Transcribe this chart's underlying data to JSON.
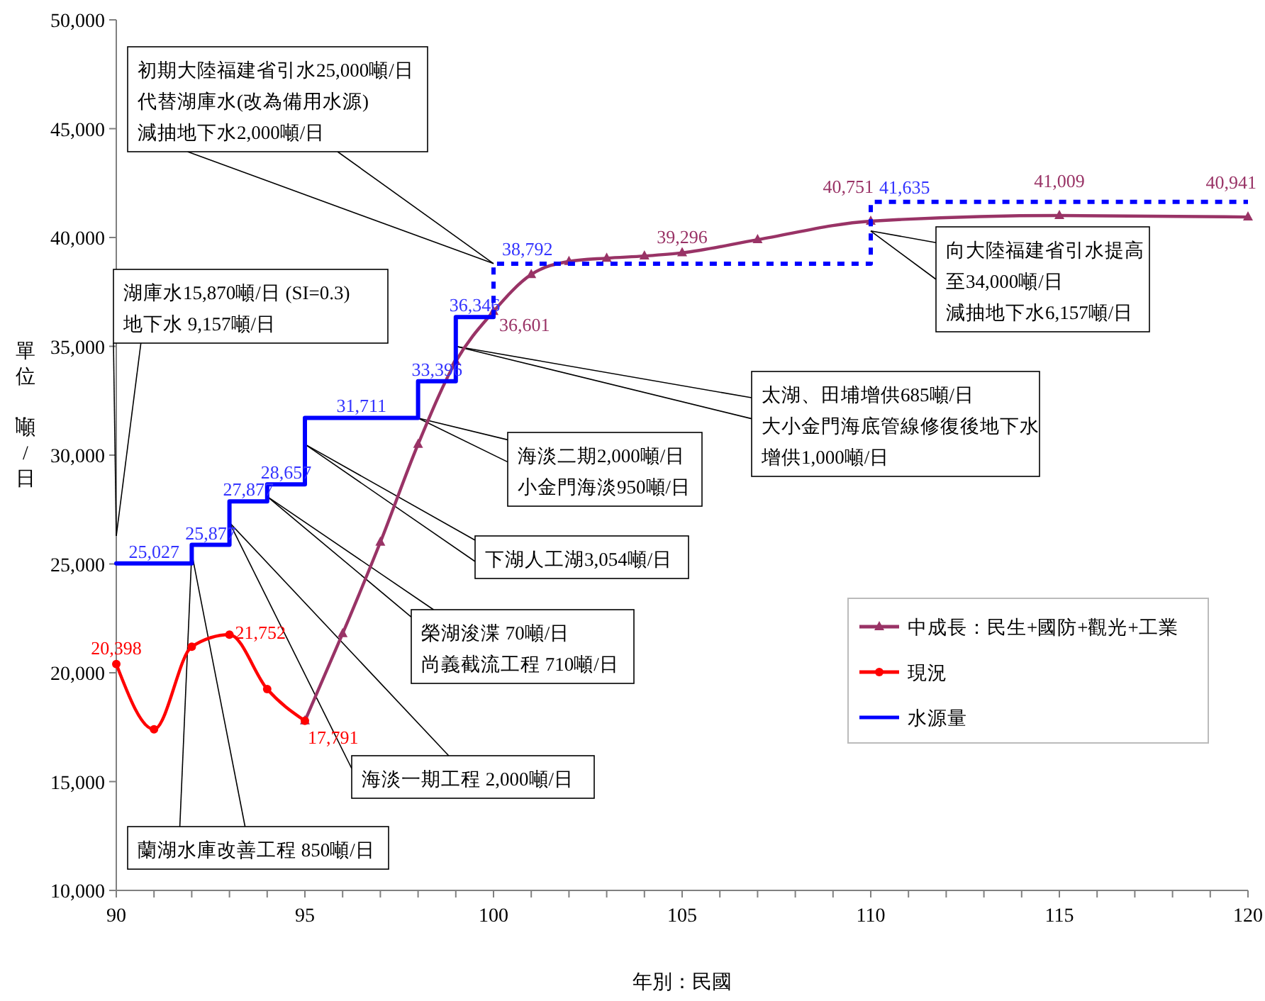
{
  "chart_data": {
    "type": "line",
    "xlabel": "年別：民國",
    "ylabel": "單位：噸/日",
    "xlim": [
      90,
      120
    ],
    "ylim": [
      10000,
      50000
    ],
    "xticks": [
      90,
      {
        "value": 91,
        "label": null
      },
      {
        "value": 92,
        "label": null
      },
      {
        "value": 93,
        "label": null
      },
      {
        "value": 94,
        "label": null
      },
      95,
      {
        "value": 96,
        "label": null
      },
      {
        "value": 97,
        "label": null
      },
      {
        "value": 98,
        "label": null
      },
      {
        "value": 99,
        "label": null
      },
      100,
      {
        "value": 101,
        "label": null
      },
      {
        "value": 102,
        "label": null
      },
      {
        "value": 103,
        "label": null
      },
      {
        "value": 104,
        "label": null
      },
      105,
      {
        "value": 106,
        "label": null
      },
      {
        "value": 107,
        "label": null
      },
      {
        "value": 108,
        "label": null
      },
      {
        "value": 109,
        "label": null
      },
      110,
      {
        "value": 111,
        "label": null
      },
      {
        "value": 112,
        "label": null
      },
      {
        "value": 113,
        "label": null
      },
      {
        "value": 114,
        "label": null
      },
      115,
      {
        "value": 116,
        "label": null
      },
      {
        "value": 117,
        "label": null
      },
      {
        "value": 118,
        "label": null
      },
      {
        "value": 119,
        "label": null
      },
      120
    ],
    "yticks": [
      {
        "value": 10000,
        "label": "10,000"
      },
      {
        "value": 15000,
        "label": "15,000"
      },
      {
        "value": 20000,
        "label": "20,000"
      },
      {
        "value": 25000,
        "label": "25,000"
      },
      {
        "value": 30000,
        "label": "30,000"
      },
      {
        "value": 35000,
        "label": "35,000"
      },
      {
        "value": 40000,
        "label": "40,000"
      },
      {
        "value": 45000,
        "label": "45,000"
      },
      {
        "value": 50000,
        "label": "50,000"
      }
    ],
    "grid": false,
    "legend": "right",
    "series": [
      {
        "name": "中成長：民生+國防+觀光+工業",
        "color": "#993366",
        "marker": "triangle",
        "line_style": "solid",
        "x": [
          95,
          96,
          97,
          98,
          99,
          100,
          101,
          102,
          103,
          104,
          105,
          107,
          110,
          115,
          120
        ],
        "values": [
          17791,
          21800,
          26000,
          30500,
          34300,
          36601,
          38300,
          38900,
          39050,
          39150,
          39296,
          39900,
          40751,
          41009,
          40941
        ],
        "value_labels": [
          null,
          null,
          null,
          null,
          null,
          "36,601",
          null,
          null,
          null,
          null,
          "39,296",
          null,
          "40,751",
          "41,009",
          "40,941"
        ]
      },
      {
        "name": "現況",
        "color": "#ff0000",
        "marker": "circle",
        "line_style": "solid",
        "x": [
          90,
          91,
          92,
          93,
          94,
          95
        ],
        "values": [
          20398,
          17400,
          21200,
          21752,
          19250,
          17791
        ],
        "value_labels": [
          "20,398",
          null,
          null,
          "21,752",
          null,
          "17,791"
        ]
      },
      {
        "name": "水源量",
        "type": "step",
        "color": "#0000ff",
        "marker": "none",
        "line_style": "solid",
        "x": [
          90,
          92,
          93,
          94,
          95,
          98,
          99,
          100
        ],
        "values": [
          25027,
          25877,
          27877,
          28657,
          31711,
          33396,
          36346,
          36346
        ],
        "value_labels": [
          "25,027",
          "25,877",
          "27,877",
          "28,657",
          "31,711",
          "33,396",
          "36,346",
          null
        ]
      },
      {
        "type": "step",
        "color": "#0000ff",
        "marker": "none",
        "line_style": "dotted",
        "x": [
          100,
          100,
          110,
          110,
          120
        ],
        "values": [
          36346,
          38792,
          38792,
          41635,
          41635
        ],
        "value_labels": [
          null,
          "38,792",
          null,
          "41,635",
          null
        ]
      }
    ],
    "annotations": [
      {
        "text": "初期大陸福建省引水25,000噸/日代替湖庫水(改為備用水源)減抽地下水2,000噸/日",
        "x": 100,
        "y": 38800
      },
      "湖庫水15,870噸/日 (SI=0.3)地下水 9,157噸/日",
      {
        "text": "太湖、田埔增供685噸/日大小金門海底管線修復後地下水增供1,000噸/日",
        "x": 99,
        "y": 35000
      },
      {
        "text": "海淡二期2,000噸/日小金門海淡950噸/日",
        "x": 98,
        "y": 31700
      },
      {
        "text": "下湖人工湖3,054噸/日",
        "x": 95,
        "y": 30500
      },
      {
        "text": "榮湖浚渫 70噸/日尚義截流工程 710噸/日",
        "x": 94,
        "y": 28100
      },
      {
        "text": "海淡一期工程 2,000噸/日",
        "x": 93,
        "y": 26900
      },
      {
        "text": "蘭湖水庫改善工程 850噸/日",
        "x": 92,
        "y": 25500
      },
      {
        "text": "向大陸福建省引水提高至34,000噸/日減抽地下水6,157噸/日",
        "x": 110,
        "y": 40300
      }
    ]
  }
}
